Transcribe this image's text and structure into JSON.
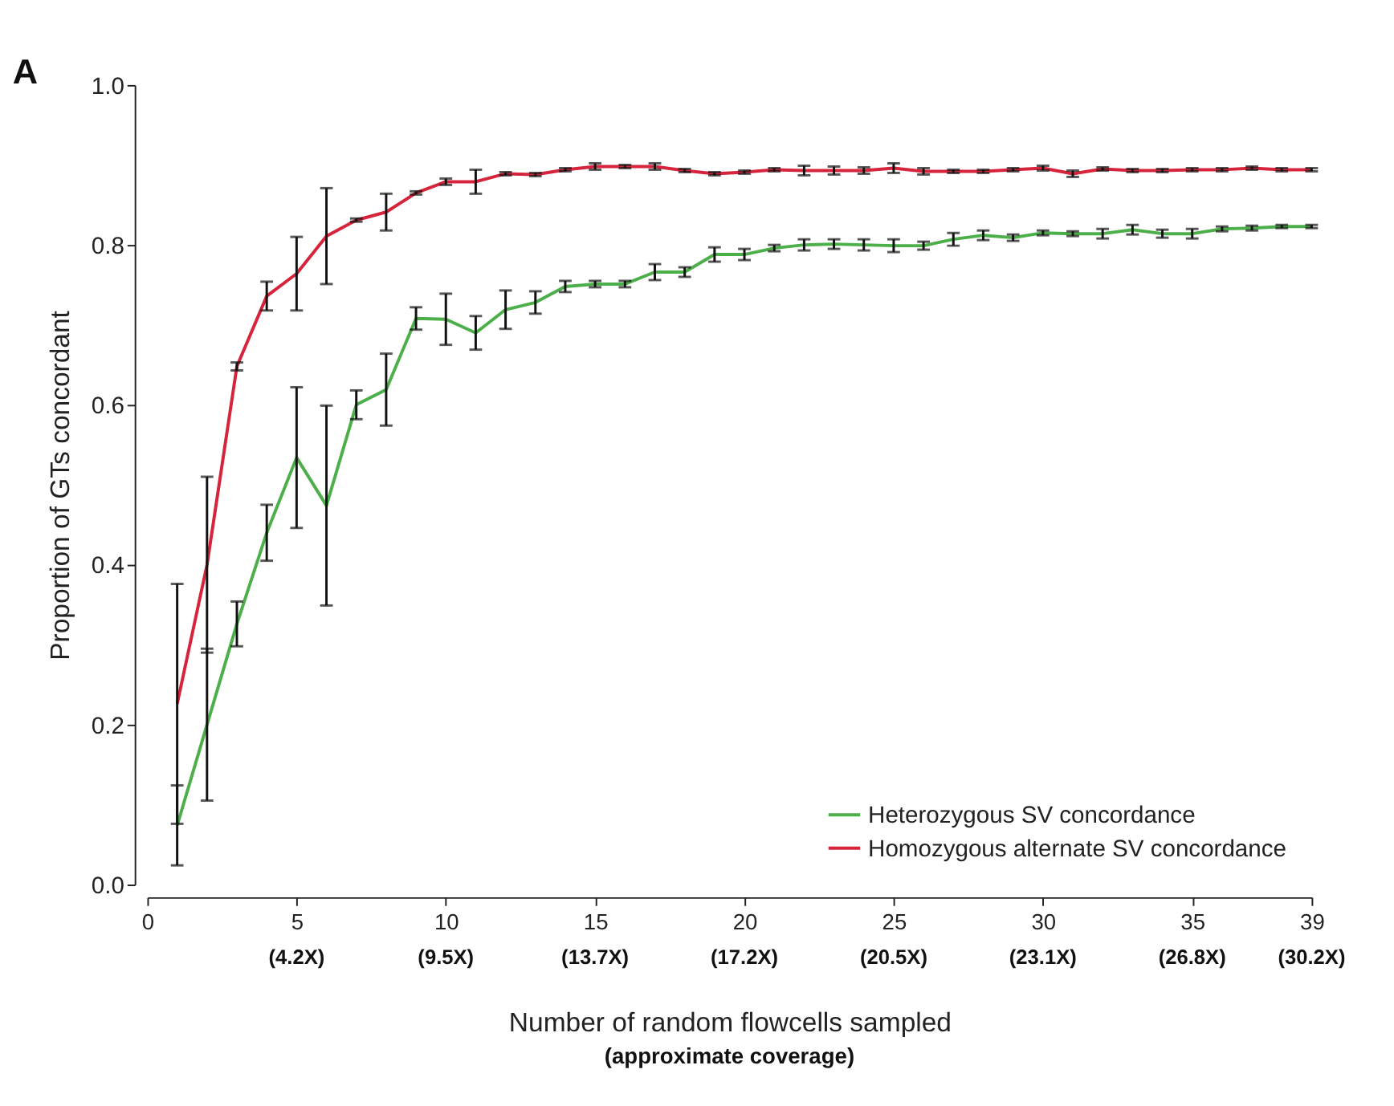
{
  "chart_data": {
    "type": "line",
    "xlabel": "Number of random flowcells sampled",
    "ylabel": "Proportion of GTs concordant",
    "annotations": [
      "A",
      "(approximate coverage)",
      "(4.2X)",
      "(9.5X)",
      "(13.7X)",
      "(17.2X)",
      "(20.5X)",
      "(23.1X)",
      "(26.8X)",
      "(30.2X)"
    ],
    "x": [
      1,
      2,
      3,
      4,
      5,
      6,
      7,
      8,
      9,
      10,
      11,
      12,
      13,
      14,
      15,
      16,
      17,
      18,
      19,
      20,
      21,
      22,
      23,
      24,
      25,
      26,
      27,
      28,
      29,
      30,
      31,
      32,
      33,
      34,
      35,
      36,
      37,
      38,
      39
    ],
    "series": [
      {
        "name": "Heterozygous SV concordance",
        "color": "#4daf4a",
        "values": [
          0.074,
          0.2,
          0.326,
          0.44,
          0.534,
          0.474,
          0.6,
          0.619,
          0.708,
          0.707,
          0.69,
          0.719,
          0.728,
          0.748,
          0.751,
          0.751,
          0.766,
          0.766,
          0.788,
          0.788,
          0.796,
          0.8,
          0.801,
          0.8,
          0.799,
          0.799,
          0.807,
          0.812,
          0.809,
          0.815,
          0.814,
          0.814,
          0.819,
          0.814,
          0.814,
          0.82,
          0.821,
          0.823,
          0.823
        ],
        "errors": [
          0.05,
          0.095,
          0.028,
          0.035,
          0.088,
          0.125,
          0.018,
          0.045,
          0.014,
          0.032,
          0.021,
          0.024,
          0.014,
          0.007,
          0.004,
          0.004,
          0.01,
          0.006,
          0.009,
          0.007,
          0.004,
          0.007,
          0.006,
          0.007,
          0.008,
          0.005,
          0.008,
          0.006,
          0.004,
          0.003,
          0.003,
          0.006,
          0.006,
          0.005,
          0.006,
          0.003,
          0.003,
          0.002,
          0.002
        ]
      },
      {
        "name": "Homozygous alternate SV concordance",
        "color": "#d6243c",
        "values": [
          0.226,
          0.4,
          0.648,
          0.736,
          0.764,
          0.811,
          0.831,
          0.841,
          0.865,
          0.879,
          0.879,
          0.889,
          0.888,
          0.894,
          0.898,
          0.898,
          0.898,
          0.893,
          0.889,
          0.891,
          0.894,
          0.893,
          0.893,
          0.893,
          0.896,
          0.892,
          0.892,
          0.892,
          0.894,
          0.896,
          0.889,
          0.895,
          0.893,
          0.893,
          0.894,
          0.894,
          0.896,
          0.894,
          0.894
        ],
        "errors": [
          0.15,
          0.11,
          0.005,
          0.018,
          0.046,
          0.06,
          0.002,
          0.023,
          0.002,
          0.004,
          0.015,
          0.002,
          0.002,
          0.002,
          0.004,
          0.002,
          0.004,
          0.002,
          0.002,
          0.002,
          0.002,
          0.006,
          0.005,
          0.004,
          0.006,
          0.004,
          0.002,
          0.002,
          0.002,
          0.003,
          0.004,
          0.002,
          0.002,
          0.002,
          0.002,
          0.002,
          0.002,
          0.002,
          0.002
        ]
      }
    ],
    "xlim": [
      0,
      39
    ],
    "xticks": [
      0,
      5,
      10,
      15,
      20,
      25,
      30,
      35,
      39
    ],
    "ylim": [
      0,
      1.0
    ],
    "yticks": [
      {
        "value": 0,
        "label": "0.0"
      },
      {
        "value": 0.2,
        "label": "0.2"
      },
      {
        "value": 0.4,
        "label": "0.4"
      },
      {
        "value": 0.6,
        "label": "0.6"
      },
      {
        "value": 0.8,
        "label": "0.8"
      },
      {
        "value": 1.0,
        "label": "1.0"
      }
    ],
    "grid": false,
    "legend": "bottom right",
    "marker": "none",
    "line_style": "solid"
  }
}
